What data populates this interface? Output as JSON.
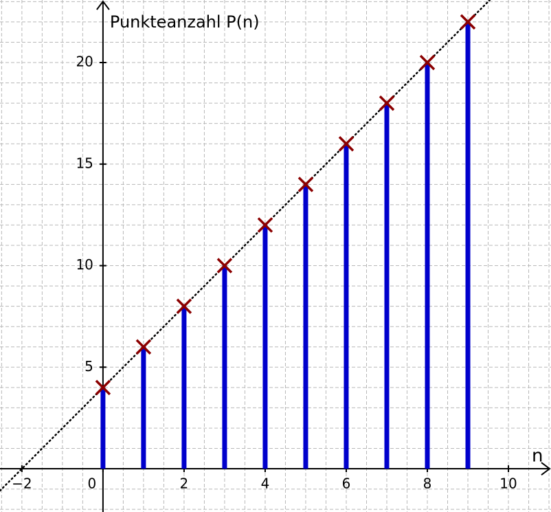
{
  "chart_data": {
    "type": "stem",
    "x_label": "n",
    "y_label": "Punkteanzahl P(n)",
    "x": [
      0,
      1,
      2,
      3,
      4,
      5,
      6,
      7,
      8,
      9
    ],
    "values": [
      4,
      6,
      8,
      10,
      12,
      14,
      16,
      18,
      20,
      22
    ],
    "color": "#0000cc",
    "marker_color": "#8b0000",
    "trend": {
      "slope": 2,
      "intercept": 4
    },
    "xlim": [
      -2.54,
      11.05
    ],
    "ylim": [
      -2.13,
      23.08
    ],
    "xticks": [
      {
        "value": -2,
        "label": "−2"
      },
      0,
      2,
      4,
      6,
      8,
      10
    ],
    "yticks": [
      5,
      10,
      15,
      20
    ],
    "grid": true,
    "x_grid_step": 0.5,
    "y_grid_step": 1
  }
}
